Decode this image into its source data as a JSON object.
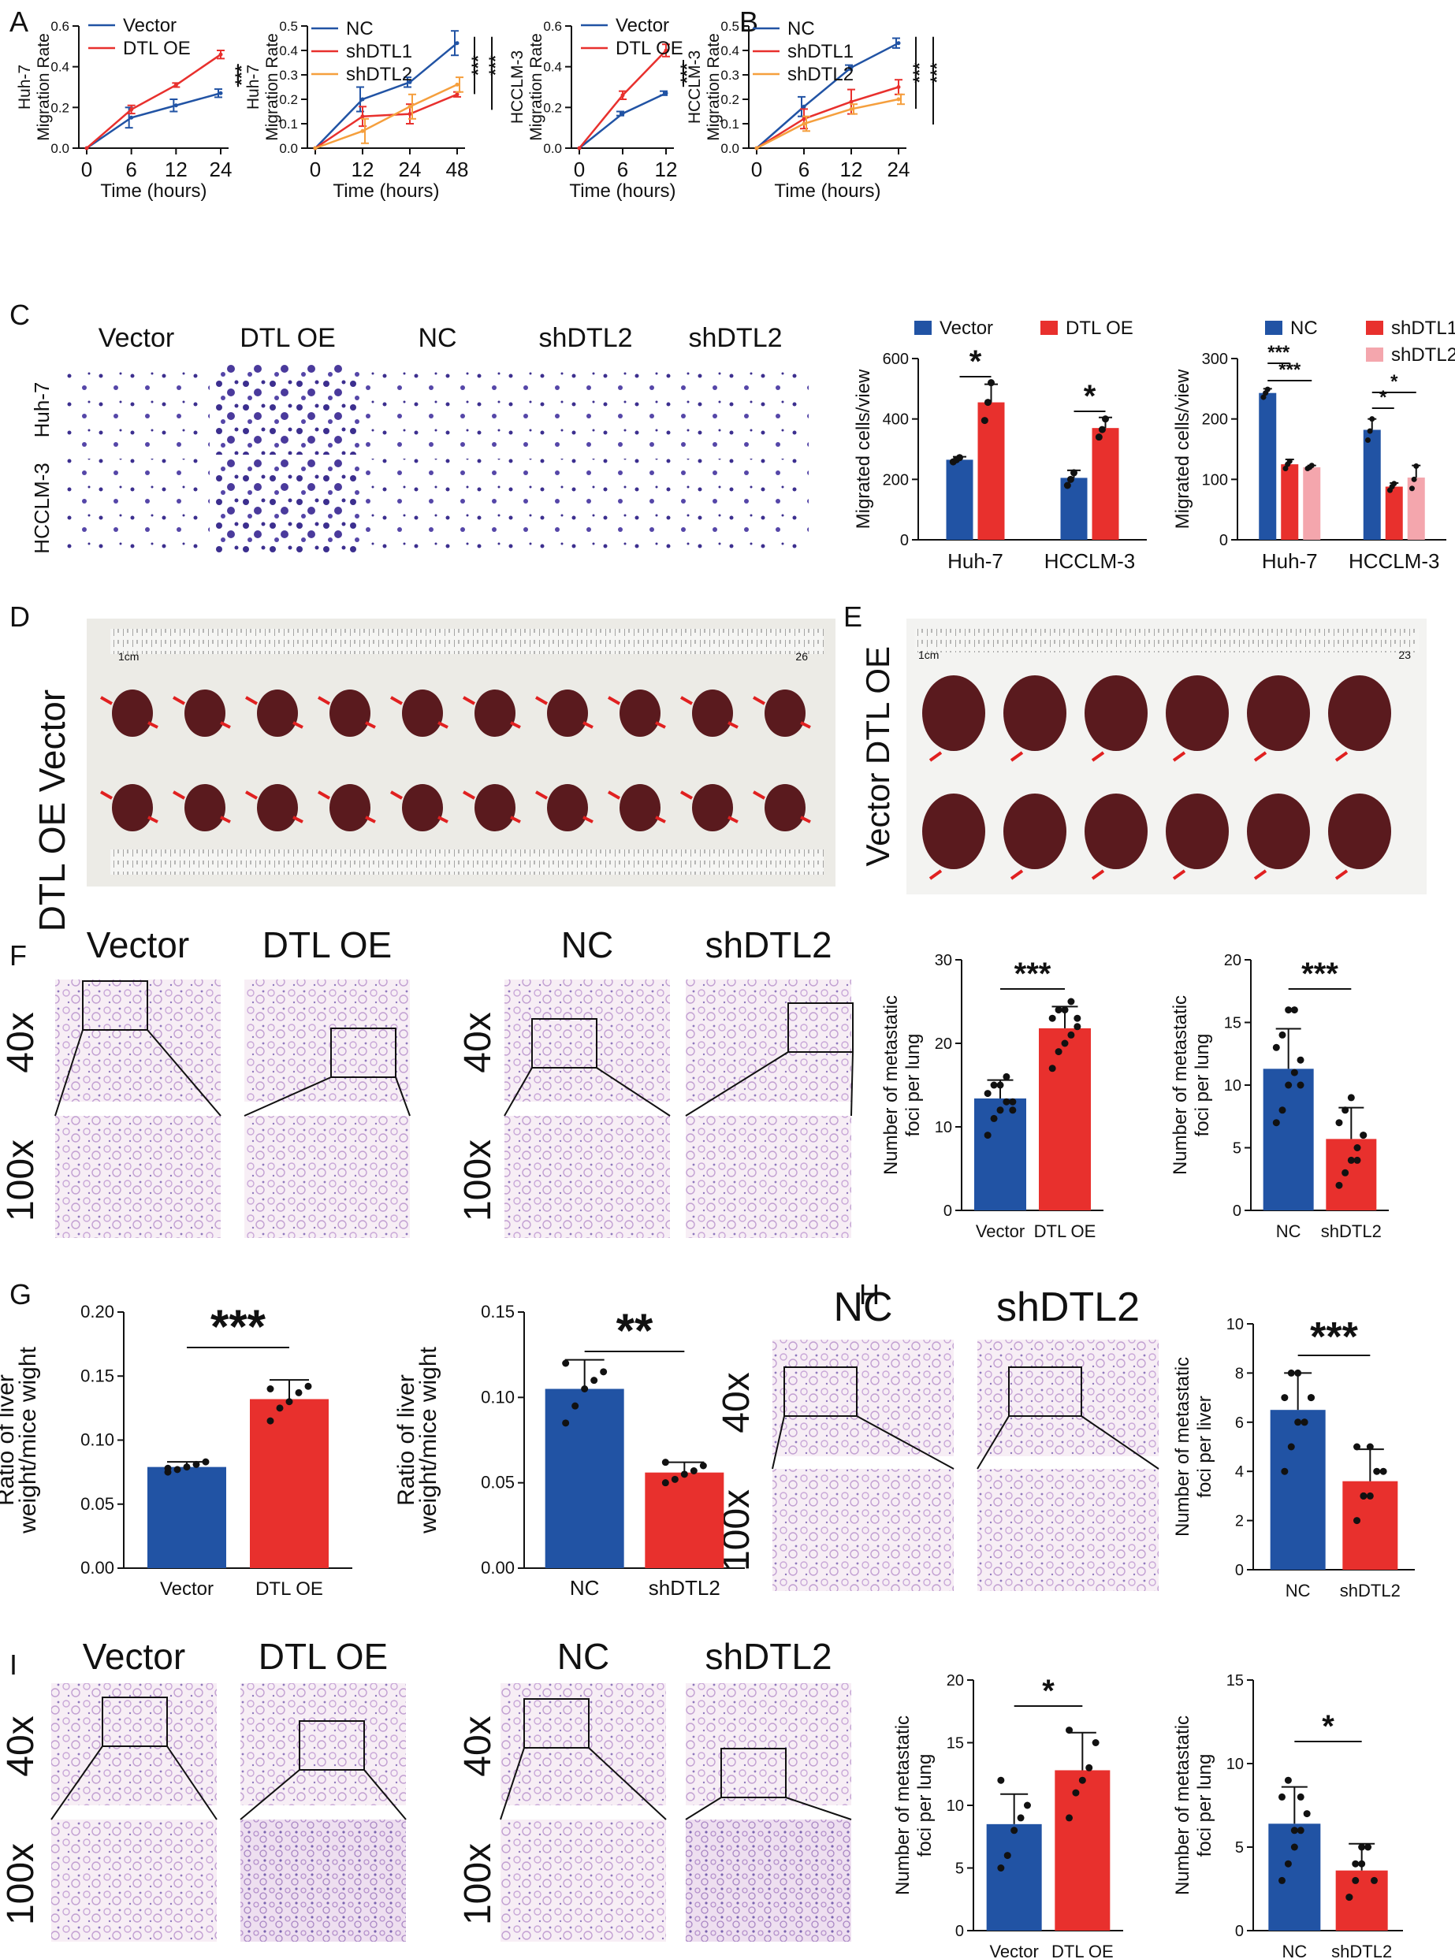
{
  "colors": {
    "vector": "#2153a4",
    "dtl_oe": "#e8302d",
    "nc": "#2153a4",
    "shdtl1": "#e8302d",
    "shdtl2_line": "#f59f3d",
    "shdtl2_bar": "#f4a6ad",
    "tissue_bg": "#f7eef5",
    "tissue_cell": "#b9a4d3",
    "stain": "#3c2f8f",
    "organ": "#5a1a1e",
    "arrow": "#e02020"
  },
  "panels": {
    "A": "A",
    "B": "B",
    "C": "C",
    "D": "D",
    "E": "E",
    "F": "F",
    "G": "G",
    "H": "H",
    "I": "I"
  },
  "microscopy": {
    "C": {
      "columns": [
        "Vector",
        "DTL OE",
        "NC",
        "shDTL2",
        "shDTL2"
      ],
      "rows": [
        "Huh-7",
        "HCCLM-3"
      ]
    },
    "D": {
      "row_labels": [
        "Vector",
        "DTL OE"
      ],
      "ruler_start": "1cm",
      "ruler_end": "26",
      "specimen_count": 10
    },
    "E": {
      "row_labels": [
        "DTL OE",
        "Vector"
      ],
      "ruler_start": "1cm",
      "ruler_end": "23",
      "specimen_count": 6
    },
    "F": {
      "columns": [
        "Vector",
        "DTL OE",
        "NC",
        "shDTL2"
      ],
      "mags": [
        "40x",
        "100x"
      ]
    },
    "H": {
      "columns": [
        "NC",
        "shDTL2"
      ],
      "mags": [
        "40x",
        "100x"
      ]
    },
    "I": {
      "columns": [
        "Vector",
        "DTL OE",
        "NC",
        "shDTL2"
      ],
      "mags": [
        "40x",
        "100x"
      ]
    }
  },
  "chart_data": [
    {
      "id": "A1",
      "type": "line",
      "x": [
        "0",
        "6",
        "12",
        "24"
      ],
      "xlabel": "Time (hours)",
      "ylabel": [
        "Huh-7",
        "Migration Rate"
      ],
      "ylim": [
        0,
        0.6
      ],
      "yticks": [
        "0.0",
        "0.2",
        "0.4",
        "0.6"
      ],
      "series": [
        {
          "name": "Vector",
          "color": "#2153a4",
          "values": [
            0,
            0.15,
            0.21,
            0.27
          ],
          "err": [
            0,
            0.05,
            0.03,
            0.02
          ]
        },
        {
          "name": "DTL OE",
          "color": "#e8302d",
          "values": [
            0,
            0.19,
            0.31,
            0.46
          ],
          "err": [
            0,
            0.02,
            0.01,
            0.02
          ]
        }
      ],
      "significance": [
        "***"
      ]
    },
    {
      "id": "A2",
      "type": "line",
      "x": [
        "0",
        "12",
        "24",
        "48"
      ],
      "xlabel": "Time (hours)",
      "ylabel": [
        "Huh-7",
        "Migration Rate"
      ],
      "ylim": [
        0,
        0.5
      ],
      "yticks": [
        "0.0",
        "0.1",
        "0.2",
        "0.3",
        "0.4",
        "0.5"
      ],
      "series": [
        {
          "name": "NC",
          "color": "#2153a4",
          "values": [
            0,
            0.2,
            0.27,
            0.43
          ],
          "err": [
            0,
            0.05,
            0.02,
            0.05
          ]
        },
        {
          "name": "shDTL1",
          "color": "#e8302d",
          "values": [
            0,
            0.13,
            0.14,
            0.22
          ],
          "err": [
            0,
            0.04,
            0.04,
            0.01
          ]
        },
        {
          "name": "shDTL2",
          "color": "#f59f3d",
          "values": [
            0,
            0.07,
            0.17,
            0.26
          ],
          "err": [
            0,
            0.05,
            0.05,
            0.03
          ]
        }
      ],
      "significance": [
        "***",
        "***"
      ]
    },
    {
      "id": "B1",
      "type": "line",
      "x": [
        "0",
        "6",
        "12"
      ],
      "xlabel": "Time (hours)",
      "ylabel": [
        "HCCLM-3",
        "Migration Rate"
      ],
      "ylim": [
        0,
        0.6
      ],
      "yticks": [
        "0.0",
        "0.2",
        "0.4",
        "0.6"
      ],
      "series": [
        {
          "name": "Vector",
          "color": "#2153a4",
          "values": [
            0,
            0.17,
            0.27
          ],
          "err": [
            0,
            0.01,
            0.01
          ]
        },
        {
          "name": "DTL OE",
          "color": "#e8302d",
          "values": [
            0,
            0.26,
            0.48
          ],
          "err": [
            0,
            0.02,
            0.03
          ]
        }
      ],
      "significance": [
        "***"
      ]
    },
    {
      "id": "B2",
      "type": "line",
      "x": [
        "0",
        "6",
        "12",
        "24"
      ],
      "xlabel": "Time (hours)",
      "ylabel": [
        "HCCLM-3",
        "Migration Rate"
      ],
      "ylim": [
        0,
        0.5
      ],
      "yticks": [
        "0.0",
        "0.1",
        "0.2",
        "0.3",
        "0.4",
        "0.5"
      ],
      "series": [
        {
          "name": "NC",
          "color": "#2153a4",
          "values": [
            0,
            0.17,
            0.33,
            0.43
          ],
          "err": [
            0,
            0.04,
            0.01,
            0.02
          ]
        },
        {
          "name": "shDTL1",
          "color": "#e8302d",
          "values": [
            0,
            0.12,
            0.19,
            0.25
          ],
          "err": [
            0,
            0.04,
            0.05,
            0.03
          ]
        },
        {
          "name": "shDTL2",
          "color": "#f59f3d",
          "values": [
            0,
            0.1,
            0.16,
            0.2
          ],
          "err": [
            0,
            0.03,
            0.02,
            0.02
          ]
        }
      ],
      "significance": [
        "***",
        "***"
      ]
    },
    {
      "id": "C1",
      "type": "bar",
      "categories": [
        "Huh-7",
        "HCCLM-3"
      ],
      "ylabel": [
        "Migrated cells/view"
      ],
      "ylim": [
        0,
        600
      ],
      "yticks": [
        "0",
        "200",
        "400",
        "600"
      ],
      "series": [
        {
          "name": "Vector",
          "color": "#2153a4",
          "values": [
            265,
            205
          ],
          "err": [
            10,
            25
          ],
          "points": [
            [
              258,
              265,
              272
            ],
            [
              180,
              200,
              222
            ]
          ]
        },
        {
          "name": "DTL OE",
          "color": "#e8302d",
          "values": [
            455,
            370
          ],
          "err": [
            60,
            35
          ],
          "points": [
            [
              395,
              455,
              520
            ],
            [
              340,
              365,
              400
            ]
          ]
        }
      ],
      "significance": [
        "*",
        "*"
      ]
    },
    {
      "id": "C2",
      "type": "bar",
      "categories": [
        "Huh-7",
        "HCCLM-3"
      ],
      "ylabel": [
        "Migrated cells/view"
      ],
      "ylim": [
        0,
        300
      ],
      "yticks": [
        "0",
        "100",
        "200",
        "300"
      ],
      "series": [
        {
          "name": "NC",
          "color": "#2153a4",
          "values": [
            243,
            182
          ],
          "err": [
            7,
            18
          ],
          "points": [
            [
              236,
              243,
              249
            ],
            [
              165,
              180,
              200
            ]
          ]
        },
        {
          "name": "shDTL1",
          "color": "#e8302d",
          "values": [
            125,
            88
          ],
          "err": [
            8,
            6
          ],
          "points": [
            [
              118,
              125,
              130
            ],
            [
              82,
              88,
              93
            ]
          ]
        },
        {
          "name": "shDTL2",
          "color": "#f4a6ad",
          "values": [
            120,
            103
          ],
          "err": [
            3,
            20
          ],
          "points": [
            [
              118,
              120,
              123
            ],
            [
              85,
              100,
              122
            ]
          ]
        }
      ],
      "significance": [
        "***",
        "***",
        "*",
        "*"
      ]
    },
    {
      "id": "F1",
      "type": "bar",
      "categories": [
        "Vector",
        "DTL OE"
      ],
      "ylabel": [
        "Number of metastatic",
        "foci per lung"
      ],
      "ylim": [
        0,
        30
      ],
      "yticks": [
        "0",
        "10",
        "20",
        "30"
      ],
      "values": [
        13.4,
        21.8
      ],
      "err": [
        2.2,
        2.6
      ],
      "colors": [
        "#2153a4",
        "#e8302d"
      ],
      "points": [
        [
          9,
          11,
          12,
          13,
          13,
          14,
          15,
          15,
          16,
          12
        ],
        [
          17,
          19,
          20,
          21,
          22,
          23,
          24,
          24,
          25,
          23
        ]
      ],
      "significance": [
        "***"
      ]
    },
    {
      "id": "F2",
      "type": "bar",
      "categories": [
        "NC",
        "shDTL2"
      ],
      "ylabel": [
        "Number of metastatic",
        "foci per lung"
      ],
      "ylim": [
        0,
        20
      ],
      "yticks": [
        "0",
        "5",
        "10",
        "15",
        "20"
      ],
      "values": [
        11.3,
        5.7
      ],
      "err": [
        3.2,
        2.5
      ],
      "colors": [
        "#2153a4",
        "#e8302d"
      ],
      "points": [
        [
          7,
          8,
          10,
          11,
          12,
          13,
          14,
          16,
          16,
          10
        ],
        [
          2,
          3,
          4,
          5,
          6,
          7,
          8,
          9,
          4,
          6
        ]
      ],
      "significance": [
        "***"
      ]
    },
    {
      "id": "G1",
      "type": "bar",
      "categories": [
        "Vector",
        "DTL OE"
      ],
      "ylabel": [
        "Ratio of liver",
        "weight/mice wight"
      ],
      "ylim": [
        0,
        0.2
      ],
      "yticks": [
        "0.00",
        "0.05",
        "0.10",
        "0.15",
        "0.20"
      ],
      "values": [
        0.079,
        0.132
      ],
      "err": [
        0.004,
        0.015
      ],
      "colors": [
        "#2153a4",
        "#e8302d"
      ],
      "points": [
        [
          0.075,
          0.077,
          0.079,
          0.081,
          0.083,
          0.078
        ],
        [
          0.115,
          0.125,
          0.13,
          0.137,
          0.142,
          0.14
        ]
      ],
      "significance": [
        "***"
      ]
    },
    {
      "id": "G2",
      "type": "bar",
      "categories": [
        "NC",
        "shDTL2"
      ],
      "ylabel": [
        "Ratio of liver",
        "weight/mice wight"
      ],
      "ylim": [
        0,
        0.15
      ],
      "yticks": [
        "0.00",
        "0.05",
        "0.10",
        "0.15"
      ],
      "values": [
        0.105,
        0.056
      ],
      "err": [
        0.017,
        0.006
      ],
      "colors": [
        "#2153a4",
        "#e8302d"
      ],
      "points": [
        [
          0.085,
          0.095,
          0.105,
          0.11,
          0.115,
          0.12
        ],
        [
          0.05,
          0.052,
          0.055,
          0.057,
          0.06,
          0.062
        ]
      ],
      "significance": [
        "**"
      ]
    },
    {
      "id": "H1",
      "type": "bar",
      "categories": [
        "NC",
        "shDTL2"
      ],
      "ylabel": [
        "Number of metastatic",
        "foci per liver"
      ],
      "ylim": [
        0,
        10
      ],
      "yticks": [
        "0",
        "2",
        "4",
        "6",
        "8",
        "10"
      ],
      "values": [
        6.5,
        3.6
      ],
      "err": [
        1.5,
        1.3
      ],
      "colors": [
        "#2153a4",
        "#e8302d"
      ],
      "points": [
        [
          4,
          5,
          6,
          6,
          7,
          7,
          8,
          8,
          6,
          7
        ],
        [
          2,
          3,
          3,
          4,
          4,
          5,
          3,
          5
        ]
      ],
      "significance": [
        "***"
      ]
    },
    {
      "id": "I1",
      "type": "bar",
      "categories": [
        "Vector",
        "DTL OE"
      ],
      "ylabel": [
        "Number of metastatic",
        "foci per lung"
      ],
      "ylim": [
        0,
        20
      ],
      "yticks": [
        "0",
        "5",
        "10",
        "15",
        "20"
      ],
      "values": [
        8.5,
        12.8
      ],
      "err": [
        2.4,
        3
      ],
      "colors": [
        "#2153a4",
        "#e8302d"
      ],
      "points": [
        [
          5,
          6,
          8,
          9,
          10,
          12
        ],
        [
          9,
          11,
          12,
          13,
          15,
          16
        ]
      ],
      "significance": [
        "*"
      ]
    },
    {
      "id": "I2",
      "type": "bar",
      "categories": [
        "NC",
        "shDTL2"
      ],
      "ylabel": [
        "Number of metastatic",
        "foci per lung"
      ],
      "ylim": [
        0,
        15
      ],
      "yticks": [
        "0",
        "5",
        "10",
        "15"
      ],
      "values": [
        6.4,
        3.6
      ],
      "err": [
        2.2,
        1.6
      ],
      "colors": [
        "#2153a4",
        "#e8302d"
      ],
      "points": [
        [
          3,
          4,
          5,
          6,
          7,
          8,
          9,
          6,
          8
        ],
        [
          2,
          3,
          4,
          5,
          3,
          2,
          4,
          5
        ]
      ],
      "significance": [
        "*"
      ]
    }
  ]
}
